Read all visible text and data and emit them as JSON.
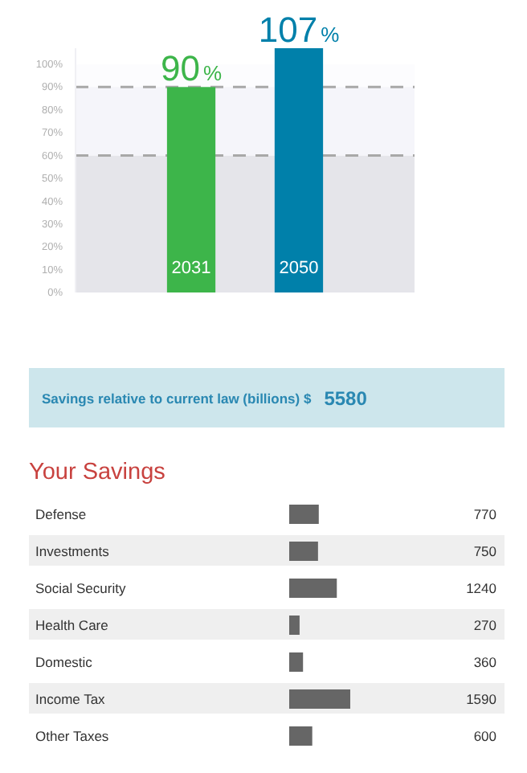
{
  "chart_data": [
    {
      "type": "bar",
      "categories": [
        "2031",
        "2050"
      ],
      "values": [
        90,
        107
      ],
      "colors": [
        "#3db54a",
        "#0080aa"
      ],
      "value_labels": [
        "90%",
        "107%"
      ],
      "ylim": [
        0,
        107
      ],
      "yticks": [
        {
          "value": 0,
          "label": "0%"
        },
        {
          "value": 10,
          "label": "10%"
        },
        {
          "value": 20,
          "label": "20%"
        },
        {
          "value": 30,
          "label": "30%"
        },
        {
          "value": 40,
          "label": "40%"
        },
        {
          "value": 50,
          "label": "50%"
        },
        {
          "value": 60,
          "label": "60%"
        },
        {
          "value": 70,
          "label": "70%"
        },
        {
          "value": 80,
          "label": "80%"
        },
        {
          "value": 90,
          "label": "90%"
        },
        {
          "value": 100,
          "label": "100%"
        }
      ],
      "bands": [
        {
          "axis": "y",
          "from": 0,
          "to": 60,
          "color": "#e5e5ea"
        },
        {
          "axis": "y",
          "from": 60,
          "to": 90,
          "color": "#f5f5fa"
        }
      ],
      "ref_lines": [
        {
          "axis": "y",
          "value": 60,
          "color": "#a8a8a8",
          "line_style": "dashed"
        },
        {
          "axis": "y",
          "value": 90,
          "color": "#a8a8a8",
          "line_style": "dashed"
        }
      ],
      "grid": false
    },
    {
      "type": "other",
      "annotations": [
        "Savings relative to current law (billions) $",
        "5580"
      ]
    },
    {
      "type": "bar",
      "orientation": "horizontal",
      "title": "Your Savings",
      "categories": [
        "Defense",
        "Investments",
        "Social Security",
        "Health Care",
        "Domestic",
        "Income Tax",
        "Other Taxes"
      ],
      "values": [
        770,
        750,
        1240,
        270,
        360,
        1590,
        600
      ],
      "color": "#666666",
      "data_labels": true,
      "tick_labels": "y"
    }
  ]
}
